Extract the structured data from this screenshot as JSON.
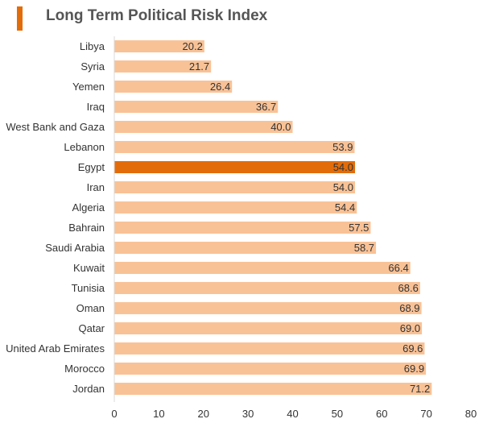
{
  "colors": {
    "bar": "#F9C296",
    "highlight": "#E36C0A",
    "title_accent": "#E36C0A",
    "title_text": "#555555",
    "label_text": "#333333",
    "axis_line": "#D9D9D9"
  },
  "chart_data": {
    "type": "bar",
    "orientation": "horizontal",
    "title": "Long Term Political Risk Index",
    "xlabel": "",
    "ylabel": "",
    "xlim": [
      0,
      80
    ],
    "x_ticks": [
      0,
      10,
      20,
      30,
      40,
      50,
      60,
      70,
      80
    ],
    "grid": false,
    "legend": "none",
    "highlight_category": "Egypt",
    "categories": [
      "Libya",
      "Syria",
      "Yemen",
      "Iraq",
      "West Bank and Gaza",
      "Lebanon",
      "Egypt",
      "Iran",
      "Algeria",
      "Bahrain",
      "Saudi Arabia",
      "Kuwait",
      "Tunisia",
      "Oman",
      "Qatar",
      "United Arab Emirates",
      "Morocco",
      "Jordan"
    ],
    "values": [
      20.2,
      21.7,
      26.4,
      36.7,
      40.0,
      53.9,
      54.0,
      54.0,
      54.4,
      57.5,
      58.7,
      66.4,
      68.6,
      68.9,
      69.0,
      69.6,
      69.9,
      71.2
    ],
    "value_labels": [
      "20.2",
      "21.7",
      "26.4",
      "36.7",
      "40.0",
      "53.9",
      "54.0",
      "54.0",
      "54.4",
      "57.5",
      "58.7",
      "66.4",
      "68.6",
      "68.9",
      "69.0",
      "69.6",
      "69.9",
      "71.2"
    ]
  }
}
